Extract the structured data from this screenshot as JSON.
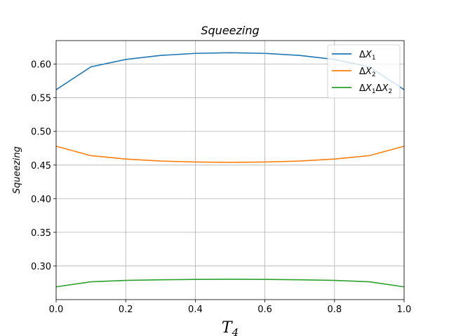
{
  "chart_data": {
    "type": "line",
    "title": "Squeezing",
    "xlabel": "T4",
    "ylabel": "Squeezing",
    "xlim": [
      0.0,
      1.0
    ],
    "ylim": [
      0.25,
      0.635
    ],
    "grid": true,
    "legend_position": "top-right",
    "xticks": [
      0.0,
      0.2,
      0.4,
      0.6,
      0.8,
      1.0
    ],
    "xtick_labels": [
      "0.0",
      "0.2",
      "0.4",
      "0.6",
      "0.8",
      "1.0"
    ],
    "yticks": [
      0.3,
      0.35,
      0.4,
      0.45,
      0.5,
      0.55,
      0.6
    ],
    "ytick_labels": [
      "0.30",
      "0.35",
      "0.40",
      "0.45",
      "0.50",
      "0.55",
      "0.60"
    ],
    "x": [
      0.0,
      0.1,
      0.2,
      0.3,
      0.4,
      0.5,
      0.6,
      0.7,
      0.8,
      0.9,
      1.0
    ],
    "series": [
      {
        "name": "ΔX1",
        "color": "#1f77b4",
        "values": [
          0.562,
          0.596,
          0.607,
          0.613,
          0.616,
          0.617,
          0.616,
          0.613,
          0.607,
          0.596,
          0.562
        ]
      },
      {
        "name": "ΔX2",
        "color": "#ff7f0e",
        "values": [
          0.478,
          0.464,
          0.459,
          0.456,
          0.4545,
          0.454,
          0.4545,
          0.456,
          0.459,
          0.464,
          0.478
        ]
      },
      {
        "name": "ΔX1ΔX2",
        "color": "#2ca02c",
        "values": [
          0.269,
          0.2765,
          0.2785,
          0.2795,
          0.28,
          0.2802,
          0.28,
          0.2795,
          0.2785,
          0.2765,
          0.269
        ]
      }
    ]
  }
}
